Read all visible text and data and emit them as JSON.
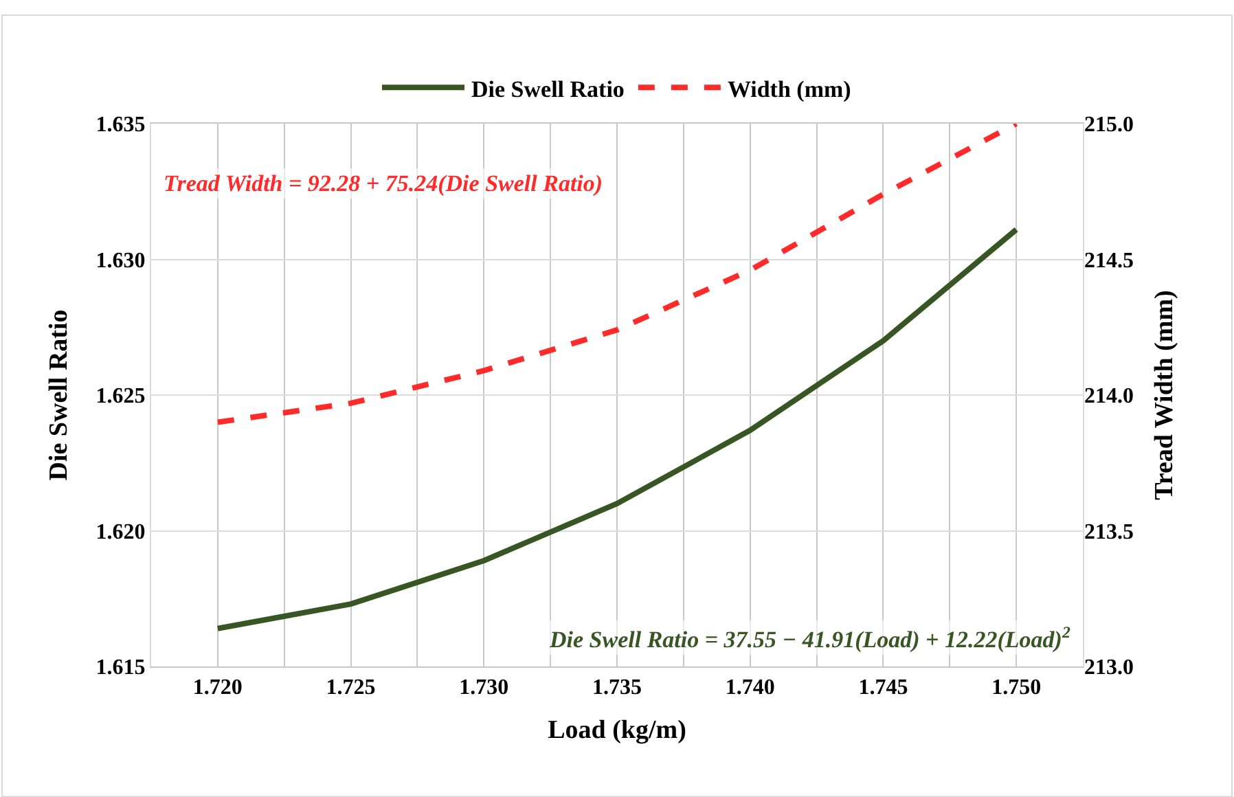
{
  "chart_data": {
    "type": "line",
    "xlabel": "Load (kg/m)",
    "ylabel": "Die Swell Ratio",
    "y2label": "Tread Width (mm)",
    "x": [
      1.72,
      1.725,
      1.73,
      1.735,
      1.74,
      1.745,
      1.75
    ],
    "series": [
      {
        "name": "Die Swell Ratio",
        "color": "#375623",
        "values": [
          1.6164,
          1.6173,
          1.6189,
          1.621,
          1.6237,
          1.627,
          1.6311
        ],
        "line_style": "solid"
      },
      {
        "name": "Width (mm)",
        "color": "#ff2a2a",
        "axis": "y2",
        "values": [
          213.9,
          213.97,
          214.09,
          214.24,
          214.46,
          214.74,
          215.0
        ],
        "line_style": "dashed"
      }
    ],
    "xlim": [
      1.7175,
      1.7525
    ],
    "xticks": [
      {
        "value": 1.72,
        "label": "1.720"
      },
      {
        "value": 1.7225,
        "label": null
      },
      {
        "value": 1.725,
        "label": "1.725"
      },
      {
        "value": 1.7275,
        "label": null
      },
      {
        "value": 1.73,
        "label": "1.730"
      },
      {
        "value": 1.7325,
        "label": null
      },
      {
        "value": 1.735,
        "label": "1.735"
      },
      {
        "value": 1.7375,
        "label": null
      },
      {
        "value": 1.74,
        "label": "1.740"
      },
      {
        "value": 1.7425,
        "label": null
      },
      {
        "value": 1.745,
        "label": "1.745"
      },
      {
        "value": 1.7475,
        "label": null
      },
      {
        "value": 1.75,
        "label": "1.750"
      }
    ],
    "ylim": [
      1.615,
      1.635
    ],
    "yticks": [
      {
        "value": 1.615,
        "label": "1.615"
      },
      {
        "value": 1.62,
        "label": "1.620"
      },
      {
        "value": 1.625,
        "label": "1.625"
      },
      {
        "value": 1.63,
        "label": "1.630"
      },
      {
        "value": 1.635,
        "label": "1.635"
      }
    ],
    "y2lim": [
      213.0,
      215.0
    ],
    "y2ticks": [
      {
        "value": 213,
        "label": "213.0"
      },
      {
        "value": 213.5,
        "label": "213.5"
      },
      {
        "value": 214,
        "label": "214.0"
      },
      {
        "value": 214.5,
        "label": "214.5"
      },
      {
        "value": 215,
        "label": "215.0"
      }
    ],
    "grid": true,
    "legend": "top",
    "marker": "none",
    "annotations": [
      "Tread Width = 92.28 + 75.24(Die Swell Ratio)",
      "Die Swell Ratio = 37.55 − 41.91(Load) + 12.22(Load)$^{2}$"
    ]
  }
}
